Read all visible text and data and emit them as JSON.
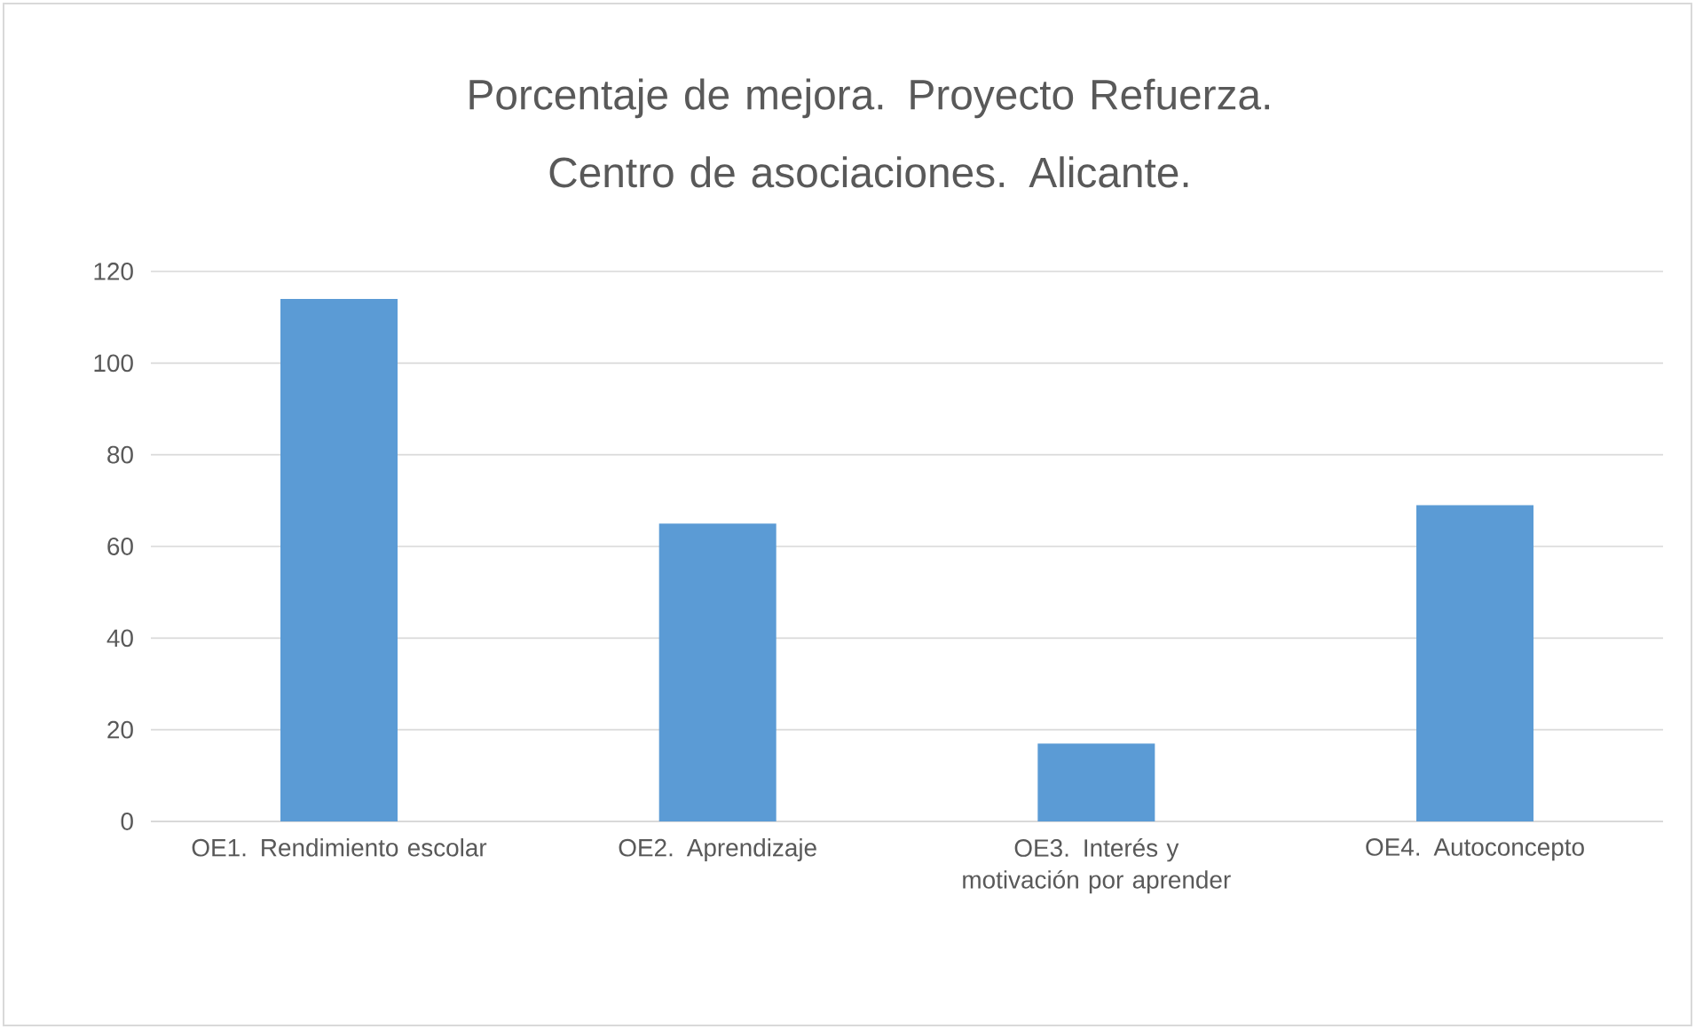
{
  "chart_data": {
    "type": "bar",
    "title": "Porcentaje de mejora. Proyecto Refuerza. Centro de asociaciones. Alicante.",
    "categories": [
      "OE1. Rendimiento escolar",
      "OE2. Aprendizaje",
      "OE3. Interés y motivación por aprender",
      "OE4. Autoconcepto"
    ],
    "values": [
      114,
      65,
      17,
      69
    ],
    "color": "#5b9bd5",
    "ylim": [
      0,
      120
    ],
    "yticks": [
      0,
      20,
      40,
      60,
      80,
      100,
      120
    ],
    "grid": "y"
  }
}
